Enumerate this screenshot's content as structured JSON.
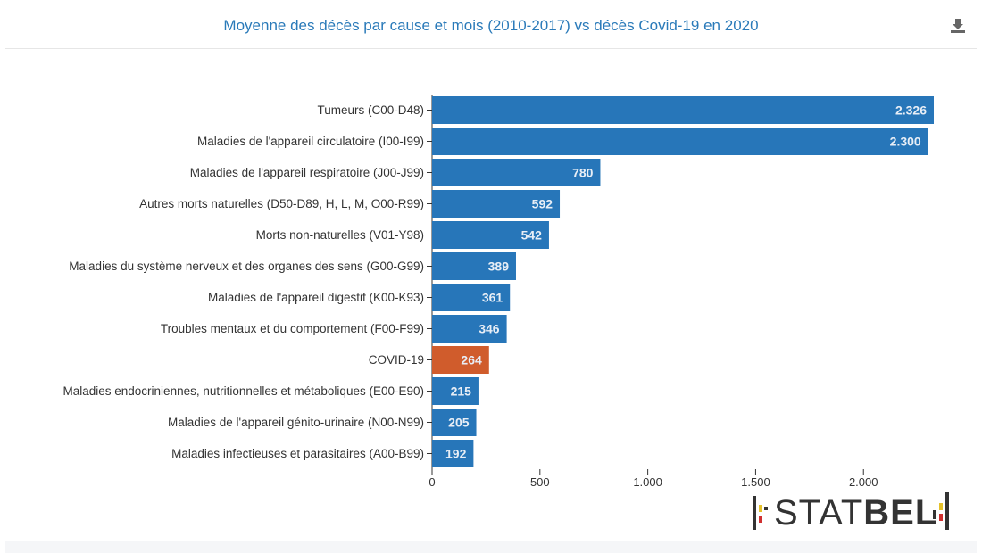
{
  "header": {
    "title": "Moyenne des décès par cause et mois (2010-2017) vs décès Covid-19 en 2020",
    "download_icon": "download-icon"
  },
  "colors": {
    "bar_default": "#2776b9",
    "bar_highlight": "#d05c2c",
    "title": "#2a7ab9"
  },
  "chart_data": {
    "type": "bar",
    "orientation": "horizontal",
    "categories": [
      "Tumeurs (C00-D48)",
      "Maladies de l'appareil circulatoire (I00-I99)",
      "Maladies de l'appareil respiratoire (J00-J99)",
      "Autres morts naturelles (D50-D89, H, L, M, O00-R99)",
      "Morts non-naturelles (V01-Y98)",
      "Maladies du système nerveux et des organes des sens (G00-G99)",
      "Maladies de l'appareil digestif (K00-K93)",
      "Troubles mentaux et du comportement (F00-F99)",
      "COVID-19",
      "Maladies endocriniennes, nutritionnelles et métaboliques (E00-E90)",
      "Maladies de l'appareil génito-urinaire (N00-N99)",
      "Maladies infectieuses et parasitaires (A00-B99)"
    ],
    "values": [
      2326,
      2300,
      780,
      592,
      542,
      389,
      361,
      346,
      264,
      215,
      205,
      192
    ],
    "value_labels": [
      "2.326",
      "2.300",
      "780",
      "592",
      "542",
      "389",
      "361",
      "346",
      "264",
      "215",
      "205",
      "192"
    ],
    "highlight_index": 8,
    "xlim": [
      0,
      2326
    ],
    "xticks": [
      0,
      500,
      1000,
      1500,
      2000
    ],
    "xtick_labels": [
      "0",
      "500",
      "1.000",
      "1.500",
      "2.000"
    ],
    "grid": false,
    "legend": "none"
  },
  "logo": {
    "text_regular": "STAT",
    "text_bold": "BEL"
  }
}
